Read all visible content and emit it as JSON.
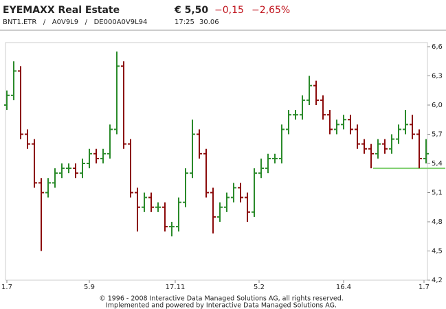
{
  "header": {
    "title": "EYEMAXX Real Estate",
    "ids": "BNT1.ETR   /   A0V9L9   /   DE000A0V9L94",
    "price": "€ 5,50",
    "change": "−0,15",
    "change_pct": "−2,65%",
    "time": "17:25",
    "date": "30.06"
  },
  "footer": [
    "© 1996 - 2008 Interactive Data Managed Solutions AG, all rights reserved.",
    "Implemented and powered by Interactive Data Managed Solutions AG."
  ],
  "chart_data": {
    "type": "ohlc",
    "up_color": "#2a8a2a",
    "down_color": "#8b0a0a",
    "xlim": [
      0,
      61
    ],
    "xticks": [
      {
        "value": 0,
        "label": "1.7"
      },
      {
        "value": 12,
        "label": "5.9"
      },
      {
        "value": 24.5,
        "label": "17.11"
      },
      {
        "value": 36.7,
        "label": "5.2"
      },
      {
        "value": 49,
        "label": "16.4"
      },
      {
        "value": 60.7,
        "label": "1.7"
      }
    ],
    "ylim": [
      4.2,
      6.6
    ],
    "yticks": [
      {
        "value": 4.2,
        "label": "4,2"
      },
      {
        "value": 4.5,
        "label": "4,5"
      },
      {
        "value": 4.8,
        "label": "4,8"
      },
      {
        "value": 5.1,
        "label": "5,1"
      },
      {
        "value": 5.4,
        "label": "5,4"
      },
      {
        "value": 5.7,
        "label": "5,7"
      },
      {
        "value": 6.0,
        "label": "6,0"
      },
      {
        "value": 6.3,
        "label": "6,3"
      },
      {
        "value": 6.6,
        "label": "6,6"
      }
    ],
    "reference_line": {
      "value": 5.35,
      "color": "#7fcf6f"
    },
    "open": [
      6.0,
      6.1,
      6.35,
      5.7,
      5.6,
      5.2,
      5.1,
      5.2,
      5.3,
      5.35,
      5.35,
      5.3,
      5.4,
      5.5,
      5.45,
      5.5,
      5.75,
      6.4,
      5.6,
      5.1,
      4.95,
      5.05,
      4.95,
      4.95,
      4.75,
      4.75,
      5.0,
      5.3,
      5.7,
      5.5,
      5.1,
      4.85,
      4.95,
      5.05,
      5.15,
      5.05,
      4.9,
      5.3,
      5.35,
      5.45,
      5.45,
      5.75,
      5.9,
      5.9,
      6.05,
      6.2,
      6.05,
      5.9,
      5.75,
      5.8,
      5.85,
      5.75,
      5.6,
      5.55,
      5.5,
      5.6,
      5.55,
      5.65,
      5.75,
      5.8,
      5.7,
      5.45
    ],
    "high": [
      6.15,
      6.45,
      6.4,
      5.75,
      5.65,
      5.25,
      5.25,
      5.35,
      5.4,
      5.4,
      5.4,
      5.45,
      5.55,
      5.55,
      5.55,
      5.8,
      6.55,
      6.45,
      5.65,
      5.15,
      5.1,
      5.1,
      5.0,
      5.0,
      4.8,
      5.05,
      5.35,
      5.85,
      5.75,
      5.55,
      5.15,
      5.0,
      5.1,
      5.2,
      5.2,
      5.1,
      5.35,
      5.45,
      5.5,
      5.5,
      5.8,
      5.95,
      5.95,
      6.1,
      6.3,
      6.25,
      6.1,
      5.95,
      5.85,
      5.9,
      5.9,
      5.8,
      5.65,
      5.6,
      5.65,
      5.65,
      5.7,
      5.8,
      5.95,
      5.9,
      5.75,
      5.65
    ],
    "low": [
      5.95,
      6.05,
      5.65,
      5.55,
      5.15,
      4.5,
      5.05,
      5.15,
      5.25,
      5.3,
      5.25,
      5.25,
      5.35,
      5.4,
      5.4,
      5.45,
      5.7,
      5.55,
      5.05,
      4.7,
      4.9,
      4.9,
      4.9,
      4.7,
      4.65,
      4.7,
      4.95,
      5.25,
      5.45,
      5.05,
      4.68,
      4.8,
      4.9,
      5.0,
      5.0,
      4.8,
      4.85,
      5.25,
      5.3,
      5.4,
      5.4,
      5.7,
      5.85,
      5.85,
      6.0,
      6.0,
      5.85,
      5.7,
      5.7,
      5.75,
      5.7,
      5.55,
      5.5,
      5.35,
      5.45,
      5.5,
      5.5,
      5.6,
      5.7,
      5.65,
      5.35,
      5.4
    ],
    "close": [
      6.1,
      6.35,
      5.7,
      5.6,
      5.2,
      5.1,
      5.2,
      5.3,
      5.35,
      5.35,
      5.3,
      5.4,
      5.5,
      5.45,
      5.5,
      5.75,
      6.4,
      5.6,
      5.1,
      4.95,
      5.05,
      4.95,
      4.95,
      4.75,
      4.75,
      5.0,
      5.3,
      5.7,
      5.5,
      5.1,
      4.85,
      4.95,
      5.05,
      5.15,
      5.05,
      4.9,
      5.3,
      5.35,
      5.45,
      5.45,
      5.75,
      5.9,
      5.9,
      6.05,
      6.2,
      6.05,
      5.9,
      5.75,
      5.8,
      5.85,
      5.75,
      5.6,
      5.55,
      5.5,
      5.6,
      5.55,
      5.65,
      5.75,
      5.8,
      5.7,
      5.45,
      5.5
    ]
  }
}
